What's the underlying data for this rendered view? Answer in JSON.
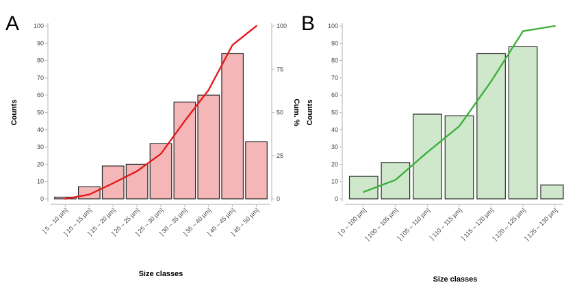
{
  "chart_data": [
    {
      "panel": "A",
      "type": "bar",
      "xlabel": "Size classes",
      "ylabel": "Counts",
      "y2label": "Cum. %",
      "ylim": [
        0,
        100
      ],
      "y2lim": [
        0,
        100
      ],
      "yticks": [
        "0",
        "10",
        "20",
        "30",
        "40",
        "50",
        "60",
        "70",
        "80",
        "90",
        "100"
      ],
      "y2ticks": [
        "0",
        "25",
        "50",
        "75",
        "100"
      ],
      "categories": [
        "] 5 – 10 µm]",
        "] 10 – 15 µm]",
        "] 15 – 20 µm]",
        "] 20 – 25 µm]",
        "] 25 – 30 µm]",
        "] 30 – 35 µm]",
        "] 35 – 40 µm]",
        "] 40 – 45 µm]",
        "] 45 – 50 µm]"
      ],
      "series": [
        {
          "type": "bar",
          "values": [
            1,
            7,
            19,
            20,
            32,
            56,
            60,
            84,
            33
          ],
          "color": "#f4b6b6",
          "edge": "#2b2b2b"
        },
        {
          "type": "line",
          "values": [
            0,
            2.5,
            9,
            16,
            26,
            45,
            63,
            89,
            100
          ],
          "color": "#e41a1c"
        }
      ],
      "grid": false
    },
    {
      "panel": "B",
      "type": "bar",
      "xlabel": "Size classes",
      "ylabel": "Counts",
      "ylim": [
        0,
        100
      ],
      "yticks": [
        "0",
        "10",
        "20",
        "30",
        "40",
        "50",
        "60",
        "70",
        "80",
        "90",
        "100"
      ],
      "categories": [
        "[ 0 – 100 µm]",
        "] 100 – 105 µm]",
        "] 105 – 110 µm]",
        "] 110 – 115 µm]",
        "] 115 – 120 µm]",
        "] 120 – 125 µm]",
        "] 125 – 130 µm]"
      ],
      "series": [
        {
          "type": "bar",
          "values": [
            13,
            21,
            49,
            48,
            84,
            88,
            8
          ],
          "color": "#cfe8cc",
          "edge": "#2b2b2b"
        },
        {
          "type": "line",
          "values": [
            4,
            11,
            27,
            42,
            68,
            97,
            100
          ],
          "color": "#3cb03c"
        }
      ],
      "grid": false
    }
  ]
}
